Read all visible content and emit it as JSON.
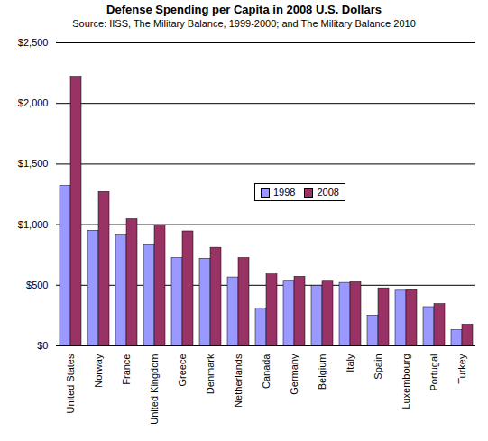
{
  "chart_data": {
    "type": "bar",
    "title": "Defense Spending per Capita in 2008 U.S. Dollars",
    "subtitle": "Source: IISS, The Military Balance, 1999-2000; and The Military Balance 2010",
    "categories": [
      "United States",
      "Norway",
      "France",
      "United Kingdom",
      "Greece",
      "Denmark",
      "Netherlands",
      "Canada",
      "Germany",
      "Belgium",
      "Italy",
      "Spain",
      "Luxembourg",
      "Portugal",
      "Turkey"
    ],
    "series": [
      {
        "name": "1998",
        "color": "#9999ff",
        "values": [
          1320,
          950,
          910,
          830,
          725,
          720,
          565,
          310,
          530,
          495,
          520,
          250,
          455,
          320,
          130
        ]
      },
      {
        "name": "2008",
        "color": "#993366",
        "values": [
          2220,
          1270,
          1045,
          995,
          945,
          810,
          725,
          590,
          570,
          530,
          525,
          475,
          460,
          345,
          175
        ]
      }
    ],
    "ylim": [
      0,
      2500
    ],
    "yticks": [
      {
        "value": 0,
        "label": "$0"
      },
      {
        "value": 500,
        "label": "$500"
      },
      {
        "value": 1000,
        "label": "$1,000"
      },
      {
        "value": 1500,
        "label": "$1,500"
      },
      {
        "value": 2000,
        "label": "$2,000"
      },
      {
        "value": 2500,
        "label": "$2,500"
      }
    ],
    "grid": true,
    "legend": "right"
  }
}
